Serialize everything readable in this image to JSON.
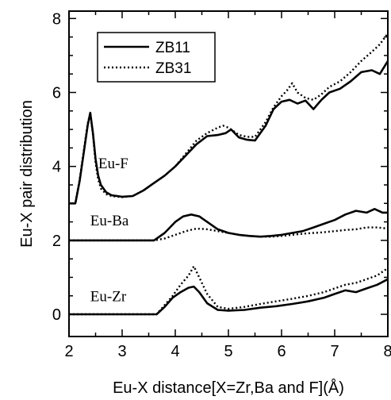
{
  "chart_data": {
    "type": "line",
    "title": "",
    "xlabel": "Eu-X distance[X=Zr,Ba and F](Å)",
    "ylabel": "Eu-X pair distribution",
    "xlim": [
      2,
      8
    ],
    "ylim": [
      -0.6,
      8.2
    ],
    "xticks": [
      2,
      3,
      4,
      5,
      6,
      7,
      8
    ],
    "yticks": [
      0,
      2,
      4,
      6,
      8
    ],
    "legend": {
      "placement": "top-left",
      "entries": [
        "ZB11",
        "ZB31"
      ]
    },
    "series": [
      {
        "name": "ZB11",
        "group": "Eu-F",
        "style": "solid",
        "x": [
          2.0,
          2.12,
          2.2,
          2.28,
          2.35,
          2.4,
          2.45,
          2.5,
          2.55,
          2.6,
          2.7,
          2.8,
          3.0,
          3.2,
          3.4,
          3.6,
          3.8,
          4.0,
          4.2,
          4.4,
          4.6,
          4.8,
          4.95,
          5.05,
          5.2,
          5.35,
          5.5,
          5.7,
          5.85,
          6.0,
          6.15,
          6.3,
          6.45,
          6.6,
          6.75,
          6.9,
          7.1,
          7.3,
          7.5,
          7.7,
          7.85,
          8.0
        ],
        "y": [
          3.0,
          3.0,
          3.6,
          4.4,
          5.1,
          5.45,
          4.9,
          4.2,
          3.75,
          3.5,
          3.3,
          3.22,
          3.18,
          3.2,
          3.35,
          3.55,
          3.75,
          4.0,
          4.3,
          4.6,
          4.82,
          4.85,
          4.9,
          5.0,
          4.78,
          4.72,
          4.7,
          5.1,
          5.55,
          5.75,
          5.8,
          5.7,
          5.78,
          5.55,
          5.8,
          6.0,
          6.1,
          6.3,
          6.55,
          6.6,
          6.5,
          6.85
        ]
      },
      {
        "name": "ZB31",
        "group": "Eu-F",
        "style": "dotted",
        "x": [
          2.0,
          2.12,
          2.2,
          2.28,
          2.35,
          2.4,
          2.45,
          2.5,
          2.55,
          2.6,
          2.7,
          2.8,
          3.0,
          3.2,
          3.4,
          3.6,
          3.8,
          4.0,
          4.2,
          4.4,
          4.6,
          4.8,
          4.9,
          5.0,
          5.1,
          5.2,
          5.35,
          5.5,
          5.7,
          5.85,
          6.0,
          6.1,
          6.2,
          6.3,
          6.45,
          6.6,
          6.75,
          6.9,
          7.1,
          7.3,
          7.5,
          7.7,
          7.85,
          8.0
        ],
        "y": [
          3.0,
          3.0,
          3.65,
          4.45,
          5.15,
          5.45,
          4.85,
          4.1,
          3.65,
          3.4,
          3.25,
          3.2,
          3.17,
          3.2,
          3.35,
          3.55,
          3.75,
          4.0,
          4.35,
          4.7,
          4.9,
          5.05,
          5.1,
          5.05,
          4.95,
          4.85,
          4.8,
          4.8,
          5.2,
          5.6,
          5.9,
          6.05,
          6.25,
          6.0,
          5.85,
          5.8,
          5.95,
          6.15,
          6.3,
          6.55,
          6.85,
          7.1,
          7.3,
          7.6
        ]
      },
      {
        "name": "ZB11",
        "group": "Eu-Ba",
        "style": "solid",
        "x": [
          2.0,
          3.6,
          3.8,
          4.0,
          4.15,
          4.3,
          4.45,
          4.6,
          4.8,
          5.0,
          5.2,
          5.4,
          5.6,
          5.8,
          6.0,
          6.2,
          6.4,
          6.6,
          6.8,
          7.0,
          7.2,
          7.4,
          7.6,
          7.75,
          7.9,
          8.0
        ],
        "y": [
          2.0,
          2.0,
          2.2,
          2.5,
          2.65,
          2.7,
          2.65,
          2.5,
          2.3,
          2.2,
          2.15,
          2.12,
          2.1,
          2.12,
          2.15,
          2.2,
          2.25,
          2.35,
          2.45,
          2.55,
          2.7,
          2.8,
          2.75,
          2.85,
          2.75,
          2.75
        ]
      },
      {
        "name": "ZB31",
        "group": "Eu-Ba",
        "style": "dotted",
        "x": [
          2.0,
          3.6,
          3.8,
          4.0,
          4.2,
          4.4,
          4.6,
          4.8,
          5.0,
          5.2,
          5.4,
          5.6,
          5.8,
          6.0,
          6.2,
          6.4,
          6.6,
          6.8,
          7.0,
          7.2,
          7.4,
          7.6,
          7.8,
          8.0
        ],
        "y": [
          2.0,
          2.0,
          2.05,
          2.15,
          2.25,
          2.32,
          2.3,
          2.25,
          2.2,
          2.15,
          2.12,
          2.1,
          2.1,
          2.12,
          2.15,
          2.18,
          2.2,
          2.22,
          2.25,
          2.28,
          2.3,
          2.35,
          2.35,
          2.32
        ]
      },
      {
        "name": "ZB11",
        "group": "Eu-Zr",
        "style": "solid",
        "x": [
          2.0,
          3.65,
          3.8,
          3.95,
          4.1,
          4.25,
          4.35,
          4.45,
          4.6,
          4.8,
          5.0,
          5.3,
          5.6,
          5.9,
          6.2,
          6.5,
          6.8,
          7.0,
          7.2,
          7.4,
          7.6,
          7.8,
          8.0
        ],
        "y": [
          0.0,
          0.0,
          0.2,
          0.45,
          0.6,
          0.72,
          0.75,
          0.6,
          0.3,
          0.12,
          0.1,
          0.12,
          0.18,
          0.22,
          0.28,
          0.35,
          0.45,
          0.55,
          0.65,
          0.6,
          0.7,
          0.8,
          0.95
        ]
      },
      {
        "name": "ZB31",
        "group": "Eu-Zr",
        "style": "dotted",
        "x": [
          2.0,
          3.65,
          3.8,
          3.95,
          4.1,
          4.25,
          4.35,
          4.45,
          4.6,
          4.8,
          5.0,
          5.3,
          5.6,
          5.9,
          6.2,
          6.5,
          6.8,
          7.0,
          7.2,
          7.4,
          7.6,
          7.8,
          8.0
        ],
        "y": [
          0.0,
          0.0,
          0.25,
          0.5,
          0.8,
          1.05,
          1.3,
          1.0,
          0.55,
          0.2,
          0.15,
          0.2,
          0.28,
          0.35,
          0.42,
          0.5,
          0.6,
          0.7,
          0.8,
          0.85,
          0.95,
          1.05,
          1.25
        ]
      }
    ],
    "annotations": [
      {
        "text": "Eu-F",
        "x": 2.55,
        "y": 3.95
      },
      {
        "text": "Eu-Ba",
        "x": 2.4,
        "y": 2.4
      },
      {
        "text": "Eu-Zr",
        "x": 2.4,
        "y": 0.35
      }
    ],
    "grid": false
  }
}
